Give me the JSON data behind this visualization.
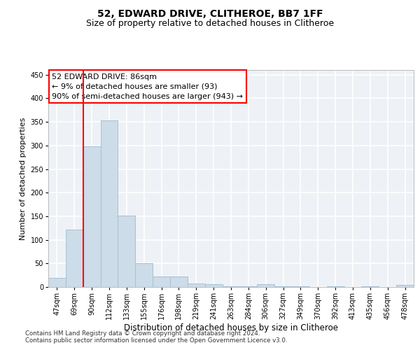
{
  "title1": "52, EDWARD DRIVE, CLITHEROE, BB7 1FF",
  "title2": "Size of property relative to detached houses in Clitheroe",
  "xlabel": "Distribution of detached houses by size in Clitheroe",
  "ylabel": "Number of detached properties",
  "footer1": "Contains HM Land Registry data © Crown copyright and database right 2024.",
  "footer2": "Contains public sector information licensed under the Open Government Licence v3.0.",
  "categories": [
    "47sqm",
    "69sqm",
    "90sqm",
    "112sqm",
    "133sqm",
    "155sqm",
    "176sqm",
    "198sqm",
    "219sqm",
    "241sqm",
    "263sqm",
    "284sqm",
    "306sqm",
    "327sqm",
    "349sqm",
    "370sqm",
    "392sqm",
    "413sqm",
    "435sqm",
    "456sqm",
    "478sqm"
  ],
  "values": [
    20,
    122,
    298,
    353,
    151,
    50,
    22,
    22,
    8,
    6,
    2,
    2,
    6,
    2,
    1,
    0,
    1,
    0,
    1,
    0,
    4
  ],
  "bar_color": "#ccdce8",
  "bar_edge_color": "#a8c0d4",
  "ylim": [
    0,
    460
  ],
  "yticks": [
    0,
    50,
    100,
    150,
    200,
    250,
    300,
    350,
    400,
    450
  ],
  "annotation_title": "52 EDWARD DRIVE: 86sqm",
  "annotation_line1": "← 9% of detached houses are smaller (93)",
  "annotation_line2": "90% of semi-detached houses are larger (943) →",
  "red_line_x": 1.52,
  "bg_color": "#eef2f6",
  "grid_color": "#ffffff",
  "title1_fontsize": 10,
  "title2_fontsize": 9,
  "xlabel_fontsize": 8.5,
  "ylabel_fontsize": 8,
  "tick_fontsize": 7,
  "annot_fontsize": 8
}
